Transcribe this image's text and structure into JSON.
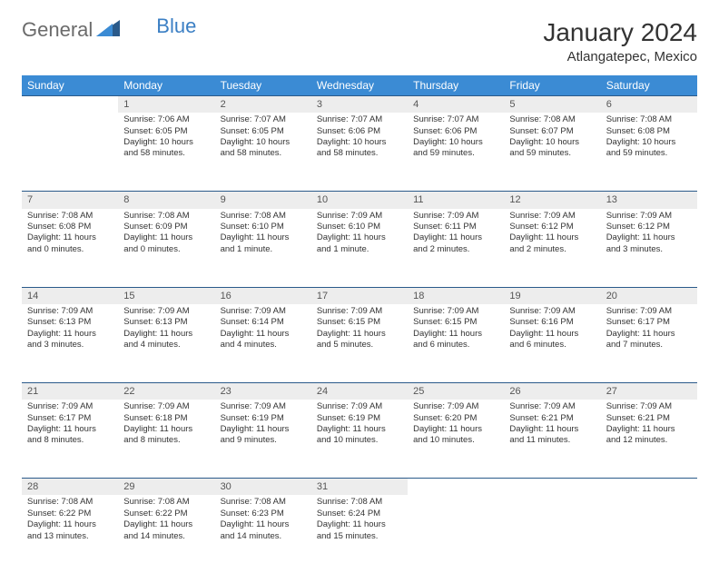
{
  "logo": {
    "text1": "General",
    "text2": "Blue"
  },
  "title": "January 2024",
  "location": "Atlangatepec, Mexico",
  "colors": {
    "header_bg": "#3b8bd4",
    "header_text": "#ffffff",
    "row_sep": "#2a5a8a",
    "daynum_bg": "#ededed",
    "logo_blue": "#3b7fc4",
    "logo_gray": "#6b6b6b"
  },
  "daysOfWeek": [
    "Sunday",
    "Monday",
    "Tuesday",
    "Wednesday",
    "Thursday",
    "Friday",
    "Saturday"
  ],
  "weeks": [
    [
      null,
      {
        "n": "1",
        "sr": "Sunrise: 7:06 AM",
        "ss": "Sunset: 6:05 PM",
        "dl": "Daylight: 10 hours and 58 minutes."
      },
      {
        "n": "2",
        "sr": "Sunrise: 7:07 AM",
        "ss": "Sunset: 6:05 PM",
        "dl": "Daylight: 10 hours and 58 minutes."
      },
      {
        "n": "3",
        "sr": "Sunrise: 7:07 AM",
        "ss": "Sunset: 6:06 PM",
        "dl": "Daylight: 10 hours and 58 minutes."
      },
      {
        "n": "4",
        "sr": "Sunrise: 7:07 AM",
        "ss": "Sunset: 6:06 PM",
        "dl": "Daylight: 10 hours and 59 minutes."
      },
      {
        "n": "5",
        "sr": "Sunrise: 7:08 AM",
        "ss": "Sunset: 6:07 PM",
        "dl": "Daylight: 10 hours and 59 minutes."
      },
      {
        "n": "6",
        "sr": "Sunrise: 7:08 AM",
        "ss": "Sunset: 6:08 PM",
        "dl": "Daylight: 10 hours and 59 minutes."
      }
    ],
    [
      {
        "n": "7",
        "sr": "Sunrise: 7:08 AM",
        "ss": "Sunset: 6:08 PM",
        "dl": "Daylight: 11 hours and 0 minutes."
      },
      {
        "n": "8",
        "sr": "Sunrise: 7:08 AM",
        "ss": "Sunset: 6:09 PM",
        "dl": "Daylight: 11 hours and 0 minutes."
      },
      {
        "n": "9",
        "sr": "Sunrise: 7:08 AM",
        "ss": "Sunset: 6:10 PM",
        "dl": "Daylight: 11 hours and 1 minute."
      },
      {
        "n": "10",
        "sr": "Sunrise: 7:09 AM",
        "ss": "Sunset: 6:10 PM",
        "dl": "Daylight: 11 hours and 1 minute."
      },
      {
        "n": "11",
        "sr": "Sunrise: 7:09 AM",
        "ss": "Sunset: 6:11 PM",
        "dl": "Daylight: 11 hours and 2 minutes."
      },
      {
        "n": "12",
        "sr": "Sunrise: 7:09 AM",
        "ss": "Sunset: 6:12 PM",
        "dl": "Daylight: 11 hours and 2 minutes."
      },
      {
        "n": "13",
        "sr": "Sunrise: 7:09 AM",
        "ss": "Sunset: 6:12 PM",
        "dl": "Daylight: 11 hours and 3 minutes."
      }
    ],
    [
      {
        "n": "14",
        "sr": "Sunrise: 7:09 AM",
        "ss": "Sunset: 6:13 PM",
        "dl": "Daylight: 11 hours and 3 minutes."
      },
      {
        "n": "15",
        "sr": "Sunrise: 7:09 AM",
        "ss": "Sunset: 6:13 PM",
        "dl": "Daylight: 11 hours and 4 minutes."
      },
      {
        "n": "16",
        "sr": "Sunrise: 7:09 AM",
        "ss": "Sunset: 6:14 PM",
        "dl": "Daylight: 11 hours and 4 minutes."
      },
      {
        "n": "17",
        "sr": "Sunrise: 7:09 AM",
        "ss": "Sunset: 6:15 PM",
        "dl": "Daylight: 11 hours and 5 minutes."
      },
      {
        "n": "18",
        "sr": "Sunrise: 7:09 AM",
        "ss": "Sunset: 6:15 PM",
        "dl": "Daylight: 11 hours and 6 minutes."
      },
      {
        "n": "19",
        "sr": "Sunrise: 7:09 AM",
        "ss": "Sunset: 6:16 PM",
        "dl": "Daylight: 11 hours and 6 minutes."
      },
      {
        "n": "20",
        "sr": "Sunrise: 7:09 AM",
        "ss": "Sunset: 6:17 PM",
        "dl": "Daylight: 11 hours and 7 minutes."
      }
    ],
    [
      {
        "n": "21",
        "sr": "Sunrise: 7:09 AM",
        "ss": "Sunset: 6:17 PM",
        "dl": "Daylight: 11 hours and 8 minutes."
      },
      {
        "n": "22",
        "sr": "Sunrise: 7:09 AM",
        "ss": "Sunset: 6:18 PM",
        "dl": "Daylight: 11 hours and 8 minutes."
      },
      {
        "n": "23",
        "sr": "Sunrise: 7:09 AM",
        "ss": "Sunset: 6:19 PM",
        "dl": "Daylight: 11 hours and 9 minutes."
      },
      {
        "n": "24",
        "sr": "Sunrise: 7:09 AM",
        "ss": "Sunset: 6:19 PM",
        "dl": "Daylight: 11 hours and 10 minutes."
      },
      {
        "n": "25",
        "sr": "Sunrise: 7:09 AM",
        "ss": "Sunset: 6:20 PM",
        "dl": "Daylight: 11 hours and 10 minutes."
      },
      {
        "n": "26",
        "sr": "Sunrise: 7:09 AM",
        "ss": "Sunset: 6:21 PM",
        "dl": "Daylight: 11 hours and 11 minutes."
      },
      {
        "n": "27",
        "sr": "Sunrise: 7:09 AM",
        "ss": "Sunset: 6:21 PM",
        "dl": "Daylight: 11 hours and 12 minutes."
      }
    ],
    [
      {
        "n": "28",
        "sr": "Sunrise: 7:08 AM",
        "ss": "Sunset: 6:22 PM",
        "dl": "Daylight: 11 hours and 13 minutes."
      },
      {
        "n": "29",
        "sr": "Sunrise: 7:08 AM",
        "ss": "Sunset: 6:22 PM",
        "dl": "Daylight: 11 hours and 14 minutes."
      },
      {
        "n": "30",
        "sr": "Sunrise: 7:08 AM",
        "ss": "Sunset: 6:23 PM",
        "dl": "Daylight: 11 hours and 14 minutes."
      },
      {
        "n": "31",
        "sr": "Sunrise: 7:08 AM",
        "ss": "Sunset: 6:24 PM",
        "dl": "Daylight: 11 hours and 15 minutes."
      },
      null,
      null,
      null
    ]
  ]
}
